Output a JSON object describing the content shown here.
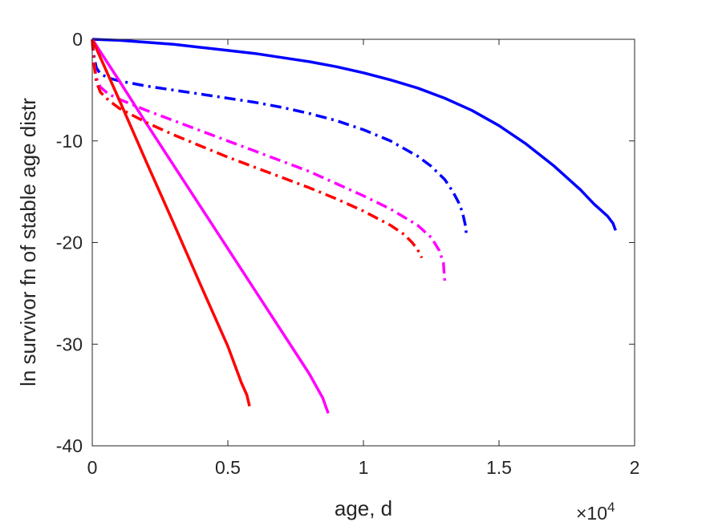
{
  "chart_data": {
    "type": "line",
    "title": "",
    "xlabel": "age, d",
    "ylabel": "ln survivor fn of stable age distr",
    "x_multiplier_label": "×10",
    "x_multiplier_exponent": "4",
    "xlim": [
      0,
      20000
    ],
    "ylim": [
      -40,
      0
    ],
    "x_ticks": [
      0,
      5000,
      10000,
      15000,
      20000
    ],
    "x_tick_labels": [
      "0",
      "0.5",
      "1",
      "1.5",
      "2"
    ],
    "y_ticks": [
      0,
      -10,
      -20,
      -30,
      -40
    ],
    "y_tick_labels": [
      "0",
      "-10",
      "-20",
      "-30",
      "-40"
    ],
    "grid": false,
    "legend": "none",
    "series": [
      {
        "color": "#0000ff",
        "style": "solid",
        "x": [
          0,
          1000,
          2000,
          3000,
          4000,
          5000,
          6000,
          7000,
          8000,
          9000,
          10000,
          11000,
          12000,
          13000,
          14000,
          15000,
          16000,
          17000,
          18000,
          18500,
          19000,
          19200,
          19300
        ],
        "y": [
          0,
          -0.1,
          -0.3,
          -0.5,
          -0.8,
          -1.1,
          -1.4,
          -1.8,
          -2.2,
          -2.7,
          -3.3,
          -4.0,
          -4.8,
          -5.8,
          -7.0,
          -8.5,
          -10.3,
          -12.4,
          -14.8,
          -16.2,
          -17.4,
          -18.1,
          -18.8
        ]
      },
      {
        "color": "#0000ff",
        "style": "dashdot",
        "x": [
          0,
          50,
          150,
          300,
          600,
          1000,
          2000,
          3000,
          4000,
          5000,
          6000,
          7000,
          8000,
          9000,
          10000,
          11000,
          12000,
          12500,
          13000,
          13300,
          13500,
          13650,
          13750,
          13800
        ],
        "y": [
          0,
          -1.5,
          -2.8,
          -3.4,
          -3.8,
          -4.1,
          -4.6,
          -5.0,
          -5.4,
          -5.8,
          -6.2,
          -6.7,
          -7.3,
          -8.0,
          -8.9,
          -10.0,
          -11.5,
          -12.5,
          -13.8,
          -15.0,
          -16.0,
          -17.0,
          -18.2,
          -19.2
        ]
      },
      {
        "color": "#ff00ff",
        "style": "solid",
        "x": [
          0,
          1000,
          2000,
          3000,
          4000,
          5000,
          6000,
          7000,
          8000,
          8500,
          8700
        ],
        "y": [
          0,
          -4.1,
          -8.3,
          -12.4,
          -16.5,
          -20.6,
          -24.7,
          -28.8,
          -32.9,
          -35.3,
          -36.8
        ]
      },
      {
        "color": "#ff00ff",
        "style": "dashdot",
        "x": [
          0,
          50,
          150,
          300,
          600,
          1000,
          2000,
          3000,
          4000,
          5000,
          6000,
          7000,
          8000,
          9000,
          10000,
          11000,
          12000,
          12500,
          12800,
          12950,
          13000
        ],
        "y": [
          0,
          -2.0,
          -3.8,
          -4.7,
          -5.4,
          -5.9,
          -7.0,
          -8.0,
          -9.0,
          -10.0,
          -11.0,
          -12.0,
          -13.0,
          -14.2,
          -15.4,
          -16.7,
          -18.3,
          -19.5,
          -20.8,
          -22.0,
          -23.8
        ]
      },
      {
        "color": "#ff0000",
        "style": "solid",
        "x": [
          0,
          1000,
          2000,
          3000,
          4000,
          5000,
          5500,
          5700,
          5800
        ],
        "y": [
          0,
          -6.0,
          -12.1,
          -18.1,
          -24.2,
          -30.2,
          -33.8,
          -35.0,
          -36.1
        ]
      },
      {
        "color": "#ff0000",
        "style": "dashdot",
        "x": [
          0,
          50,
          150,
          300,
          600,
          1000,
          2000,
          3000,
          4000,
          5000,
          6000,
          7000,
          8000,
          9000,
          10000,
          11000,
          11500,
          11800,
          12000,
          12150
        ],
        "y": [
          0,
          -2.2,
          -4.2,
          -5.2,
          -6.0,
          -6.8,
          -8.2,
          -9.4,
          -10.5,
          -11.6,
          -12.6,
          -13.6,
          -14.6,
          -15.7,
          -16.9,
          -18.3,
          -19.2,
          -20.0,
          -20.7,
          -21.5
        ]
      }
    ]
  }
}
